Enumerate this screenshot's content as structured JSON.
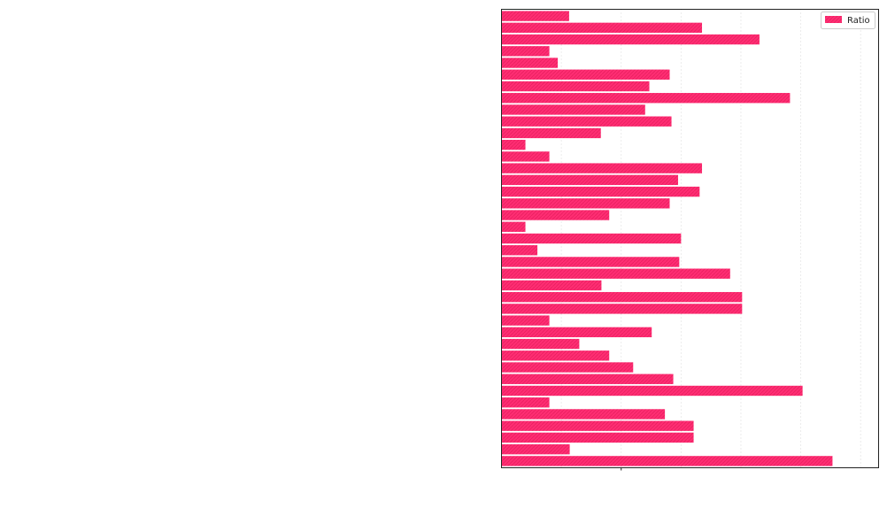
{
  "chart_data": {
    "type": "bar",
    "orientation": "horizontal",
    "xlim": [
      0,
      6.3
    ],
    "grid": "vertical-dotted",
    "legend_placement": "top-right",
    "bar_color": "#ff2d73",
    "series": [
      {
        "name": "Ratio",
        "values": [
          1.13,
          3.35,
          4.31,
          0.8,
          0.94,
          2.81,
          2.47,
          4.82,
          2.4,
          2.84,
          1.66,
          0.4,
          0.8,
          3.35,
          2.95,
          3.31,
          2.81,
          1.8,
          0.4,
          3.0,
          0.6,
          2.97,
          3.82,
          1.67,
          4.02,
          4.02,
          0.8,
          2.51,
          1.3,
          1.8,
          2.2,
          2.87,
          5.03,
          0.8,
          2.73,
          3.21,
          3.21,
          1.14,
          5.53
        ]
      }
    ]
  }
}
